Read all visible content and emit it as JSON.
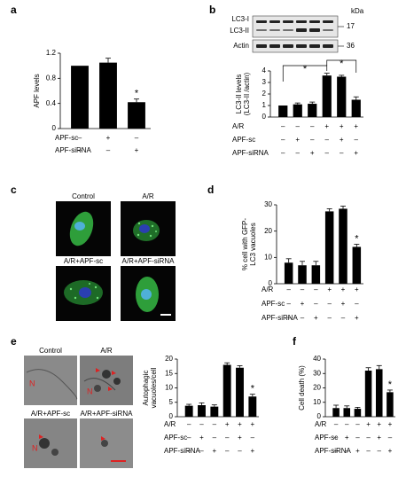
{
  "panel_letters": [
    "a",
    "b",
    "c",
    "d",
    "e",
    "f"
  ],
  "chart_data": [
    {
      "type": "bar",
      "y_label": [
        "APF levels"
      ],
      "ylim": [
        0,
        1.2
      ],
      "yticks": [
        0,
        0.4,
        0.8,
        1.2
      ],
      "color": "#000000",
      "values": [
        1.0,
        1.05,
        0.42
      ],
      "errors": [
        0,
        0.07,
        0.05
      ],
      "significance": [
        null,
        null,
        "*"
      ],
      "conditions": [
        {
          "name": "APF-sc",
          "marks": [
            "–",
            "+",
            "–"
          ]
        },
        {
          "name": "APF-siRNA",
          "marks": [
            "–",
            "–",
            "+"
          ]
        }
      ]
    },
    {
      "type": "bar",
      "y_label": [
        "LC3-II levels",
        "(LC3-II /actin)"
      ],
      "ylim": [
        0,
        4
      ],
      "yticks": [
        0,
        1,
        2,
        3,
        4
      ],
      "color": "#000000",
      "values": [
        1.0,
        1.1,
        1.15,
        3.6,
        3.5,
        1.5
      ],
      "errors": [
        0,
        0.12,
        0.15,
        0.2,
        0.12,
        0.25
      ],
      "significance": [
        null,
        null,
        null,
        null,
        null,
        null
      ],
      "comparison_labels": [
        "*",
        "*"
      ],
      "conditions": [
        {
          "name": "A/R",
          "marks": [
            "–",
            "–",
            "–",
            "+",
            "+",
            "+"
          ]
        },
        {
          "name": "APF-sc",
          "marks": [
            "–",
            "+",
            "–",
            "–",
            "+",
            "–"
          ]
        },
        {
          "name": "APF-siRNA",
          "marks": [
            "–",
            "–",
            "+",
            "–",
            "–",
            "+"
          ]
        }
      ]
    },
    {
      "type": "bar",
      "y_label": [
        "% cell with GFP-",
        "LC3 vacuoles"
      ],
      "ylim": [
        0,
        30
      ],
      "yticks": [
        0,
        10,
        20,
        30
      ],
      "color": "#000000",
      "values": [
        8,
        7,
        7,
        27.5,
        28.5,
        14
      ],
      "errors": [
        1.5,
        1.5,
        1.5,
        1,
        1,
        1
      ],
      "significance": [
        null,
        null,
        null,
        null,
        null,
        "*"
      ],
      "conditions": [
        {
          "name": "A/R",
          "marks": [
            "–",
            "–",
            "–",
            "+",
            "+",
            "+"
          ]
        },
        {
          "name": "APF-sc",
          "marks": [
            "–",
            "+",
            "–",
            "–",
            "+",
            "–"
          ]
        },
        {
          "name": "APF-siRNA",
          "marks": [
            "–",
            "–",
            "+",
            "–",
            "–",
            "+"
          ]
        }
      ]
    },
    {
      "type": "bar",
      "y_label": [
        "Autophagic",
        "vacuoles/cell"
      ],
      "ylim": [
        0,
        20
      ],
      "yticks": [
        0,
        5,
        10,
        15,
        20
      ],
      "color": "#000000",
      "values": [
        3.8,
        4,
        3.5,
        18,
        17,
        7
      ],
      "errors": [
        0.5,
        0.8,
        0.6,
        0.7,
        0.7,
        0.8
      ],
      "significance": [
        null,
        null,
        null,
        null,
        null,
        "*"
      ],
      "conditions": [
        {
          "name": "A/R",
          "marks": [
            "–",
            "–",
            "–",
            "+",
            "+",
            "+"
          ]
        },
        {
          "name": "APF-sc",
          "marks": [
            "–",
            "+",
            "–",
            "–",
            "+",
            "–"
          ]
        },
        {
          "name": "APF-siRNA",
          "marks": [
            "–",
            "–",
            "+",
            "–",
            "–",
            "+"
          ]
        }
      ]
    },
    {
      "type": "bar",
      "y_label": [
        "Cell death (%)"
      ],
      "ylim": [
        0,
        40
      ],
      "yticks": [
        0,
        10,
        20,
        30,
        40
      ],
      "color": "#000000",
      "values": [
        6,
        6,
        5.5,
        32,
        33,
        17
      ],
      "errors": [
        2,
        1.5,
        1,
        2,
        2.5,
        1.5
      ],
      "significance": [
        null,
        null,
        null,
        null,
        null,
        "*"
      ],
      "conditions": [
        {
          "name": "A/R",
          "marks": [
            "–",
            "–",
            "–",
            "+",
            "+",
            "+"
          ]
        },
        {
          "name": "APF-sc",
          "marks": [
            "–",
            "+",
            "–",
            "–",
            "+",
            "–"
          ]
        },
        {
          "name": "APF-siRNA",
          "marks": [
            "–",
            "–",
            "+",
            "–",
            "–",
            "+"
          ]
        }
      ]
    }
  ],
  "blot": {
    "bands": [
      "LC3-I",
      "LC3-II"
    ],
    "loading": "Actin",
    "unit": "kDa",
    "markers": [
      17,
      36
    ]
  },
  "micrographs_c": {
    "labels": [
      "Control",
      "A/R",
      "A/R+APF-sc",
      "A/R+APF-siRNA"
    ]
  },
  "micrographs_e": {
    "labels": [
      "Control",
      "A/R",
      "A/R+APF-sc",
      "A/R+APF-siRNA"
    ],
    "nucleus_marks": [
      "N",
      "N",
      "N"
    ]
  }
}
